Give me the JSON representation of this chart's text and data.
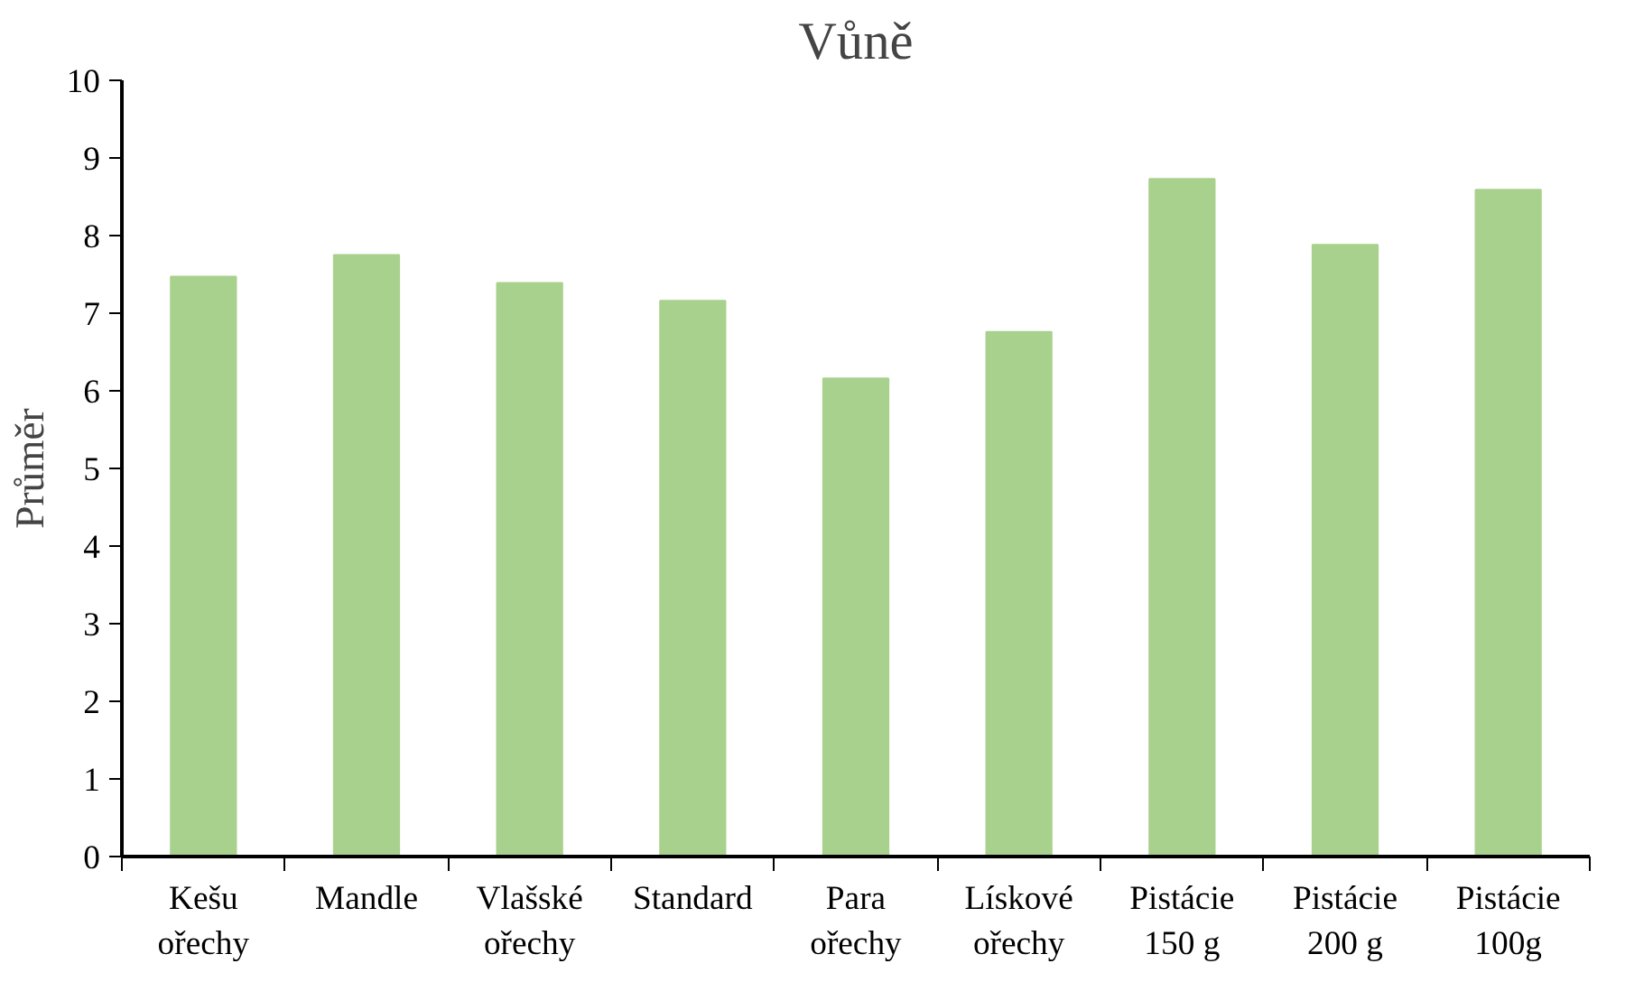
{
  "chart_data": {
    "type": "bar",
    "title": "Vůně",
    "ylabel": "Průměr",
    "categories": [
      "Kešu\nořechy",
      "Mandle",
      "Vlašské\nořechy",
      "Standard",
      "Para\nořechy",
      "Lískové\nořechy",
      "Pistácie\n150 g",
      "Pistácie\n200 g",
      "Pistácie\n100g"
    ],
    "values": [
      7.47,
      7.75,
      7.39,
      7.16,
      6.16,
      6.76,
      8.73,
      7.88,
      8.59
    ],
    "color": "#a9d18e",
    "ylim": [
      0,
      10
    ],
    "yticks": [
      0,
      1,
      2,
      3,
      4,
      5,
      6,
      7,
      8,
      9,
      10
    ],
    "grid": false
  }
}
